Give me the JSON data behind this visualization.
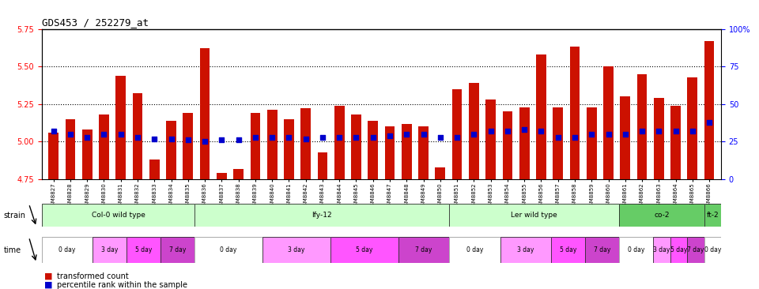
{
  "title": "GDS453 / 252279_at",
  "samples": [
    "GSM8827",
    "GSM8828",
    "GSM8829",
    "GSM8830",
    "GSM8831",
    "GSM8832",
    "GSM8833",
    "GSM8834",
    "GSM8835",
    "GSM8836",
    "GSM8837",
    "GSM8838",
    "GSM8839",
    "GSM8840",
    "GSM8841",
    "GSM8842",
    "GSM8843",
    "GSM8844",
    "GSM8845",
    "GSM8846",
    "GSM8847",
    "GSM8848",
    "GSM8849",
    "GSM8850",
    "GSM8851",
    "GSM8852",
    "GSM8853",
    "GSM8854",
    "GSM8855",
    "GSM8856",
    "GSM8857",
    "GSM8858",
    "GSM8859",
    "GSM8860",
    "GSM8861",
    "GSM8862",
    "GSM8863",
    "GSM8864",
    "GSM8865",
    "GSM8866"
  ],
  "bar_values": [
    5.06,
    5.15,
    5.08,
    5.18,
    5.44,
    5.32,
    4.88,
    5.14,
    5.19,
    5.62,
    4.79,
    4.82,
    5.19,
    5.21,
    5.15,
    5.22,
    4.93,
    5.24,
    5.18,
    5.14,
    5.1,
    5.12,
    5.1,
    4.83,
    5.35,
    5.39,
    5.28,
    5.2,
    5.23,
    5.58,
    5.23,
    5.63,
    5.23,
    5.5,
    5.3,
    5.45,
    5.29,
    5.24,
    5.43,
    5.67
  ],
  "percentile_values": [
    32,
    30,
    28,
    30,
    30,
    28,
    27,
    27,
    26,
    25,
    26,
    26,
    28,
    28,
    28,
    27,
    28,
    28,
    28,
    28,
    29,
    30,
    30,
    28,
    28,
    30,
    32,
    32,
    33,
    32,
    28,
    28,
    30,
    30,
    30,
    32,
    32,
    32,
    32,
    38
  ],
  "ylim": [
    4.75,
    5.75
  ],
  "ylim_right": [
    0,
    100
  ],
  "yticks": [
    4.75,
    5.0,
    5.25,
    5.5,
    5.75
  ],
  "yticks_right": [
    0,
    25,
    50,
    75,
    100
  ],
  "ytick_labels_right": [
    "0",
    "25",
    "50",
    "75",
    "100%"
  ],
  "bar_color": "#CC1100",
  "blue_color": "#0000CC",
  "strains": [
    {
      "label": "Col-0 wild type",
      "start": 0,
      "end": 9,
      "color": "#CCFFCC"
    },
    {
      "label": "lfy-12",
      "start": 9,
      "end": 24,
      "color": "#CCFFCC"
    },
    {
      "label": "Ler wild type",
      "start": 24,
      "end": 34,
      "color": "#CCFFCC"
    },
    {
      "label": "co-2",
      "start": 34,
      "end": 39,
      "color": "#66CC66"
    },
    {
      "label": "ft-2",
      "start": 39,
      "end": 40,
      "color": "#66CC66"
    }
  ],
  "time_groups": [
    {
      "label": "0 day",
      "color": "#FFFFFF"
    },
    {
      "label": "3 day",
      "color": "#FF99FF"
    },
    {
      "label": "5 day",
      "color": "#FF44FF"
    },
    {
      "label": "7 day",
      "color": "#CC44CC"
    }
  ],
  "dotted_line_color": "#333333",
  "background_color": "#FFFFFF"
}
